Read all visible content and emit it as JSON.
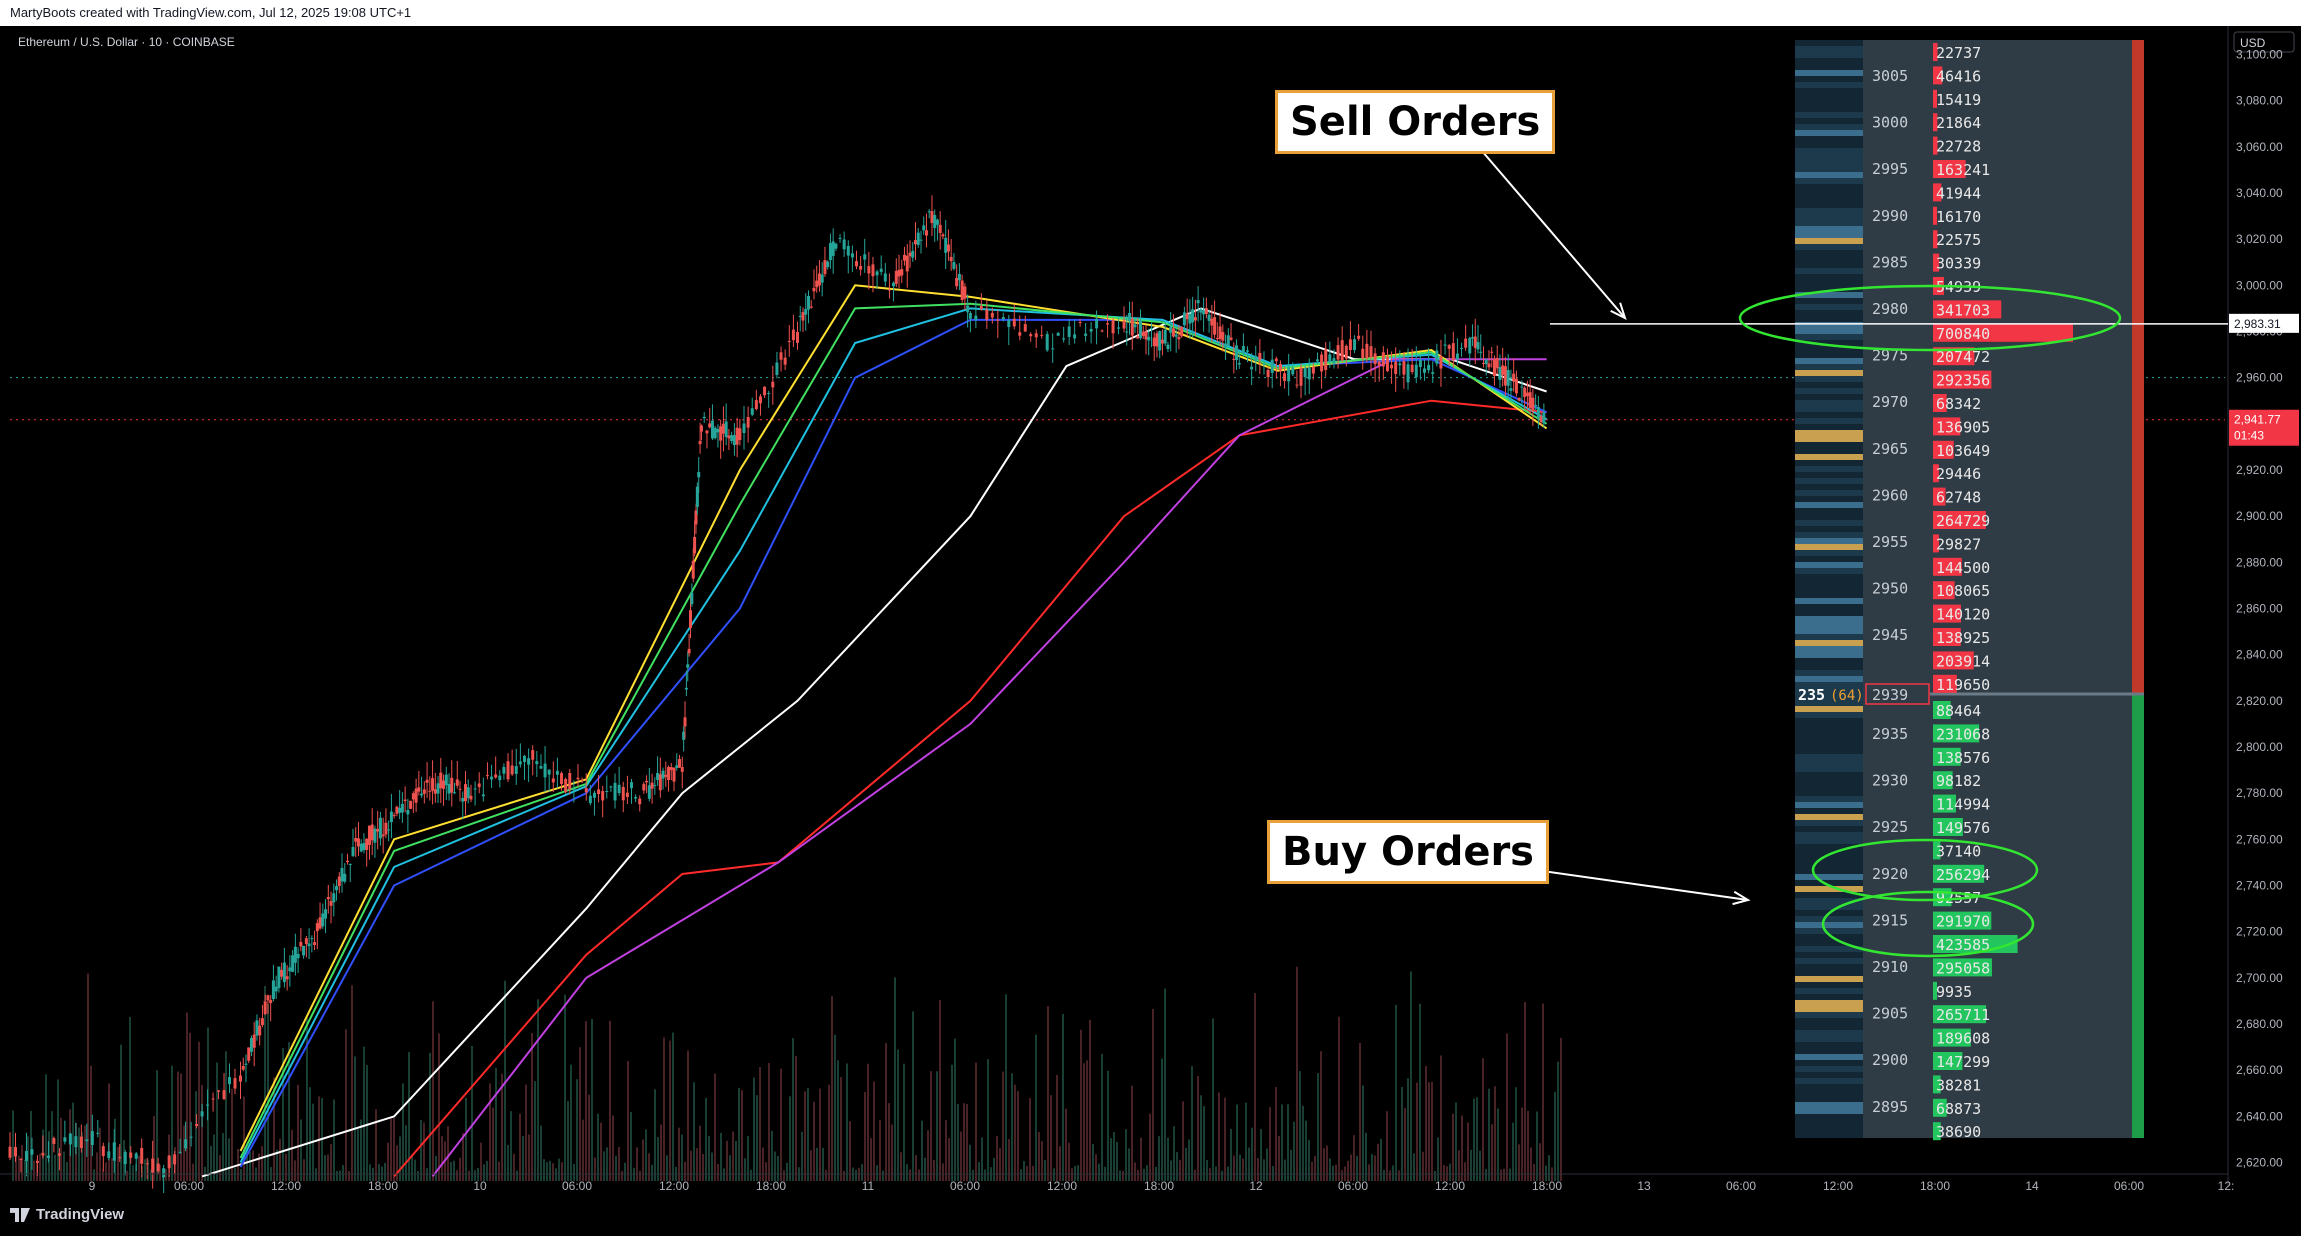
{
  "header": {
    "credit": "MartyBoots created with TradingView.com, Jul 12, 2025 19:08 UTC+1"
  },
  "footer": {
    "brand": "TradingView"
  },
  "annotations": {
    "sell_label": "Sell Orders",
    "buy_label": "Buy Orders"
  },
  "colors": {
    "background": "#000000",
    "ask": "#f23645",
    "bid": "#22c55e",
    "ladder_bg": "#2f3c45",
    "callout_border": "#e8a13a",
    "circle": "#32e632"
  },
  "chart_data": {
    "type": "line",
    "title": "Ethereum / U.S. Dollar · 10 · COINBASE",
    "currency": "USD",
    "ylim": [
      2612,
      3108
    ],
    "y_ticks": [
      "3,100.00",
      "3,080.00",
      "3,060.00",
      "3,040.00",
      "3,020.00",
      "3,000.00",
      "2,980.00",
      "2,960.00",
      "2,940.00",
      "2,920.00",
      "2,900.00",
      "2,880.00",
      "2,860.00",
      "2,840.00",
      "2,820.00",
      "2,800.00",
      "2,780.00",
      "2,760.00",
      "2,740.00",
      "2,720.00",
      "2,700.00",
      "2,680.00",
      "2,660.00",
      "2,640.00",
      "2,620.00"
    ],
    "x_ticks": [
      "9",
      "06:00",
      "12:00",
      "18:00",
      "10",
      "06:00",
      "12:00",
      "18:00",
      "11",
      "06:00",
      "12:00",
      "18:00",
      "12",
      "06:00",
      "12:00",
      "18:00",
      "13",
      "06:00",
      "12:00",
      "18:00",
      "14",
      "06:00",
      "12:"
    ],
    "price_labels": {
      "horizontal_line": "2,983.31",
      "last_price": "2,941.77",
      "countdown": "01:43"
    },
    "price_path": [
      {
        "x": 0.0,
        "y": 2622
      },
      {
        "x": 0.02,
        "y": 2630
      },
      {
        "x": 0.04,
        "y": 2618
      },
      {
        "x": 0.06,
        "y": 2660
      },
      {
        "x": 0.07,
        "y": 2700
      },
      {
        "x": 0.08,
        "y": 2720
      },
      {
        "x": 0.09,
        "y": 2756
      },
      {
        "x": 0.1,
        "y": 2770
      },
      {
        "x": 0.11,
        "y": 2785
      },
      {
        "x": 0.12,
        "y": 2780
      },
      {
        "x": 0.135,
        "y": 2795
      },
      {
        "x": 0.15,
        "y": 2780
      },
      {
        "x": 0.165,
        "y": 2780
      },
      {
        "x": 0.175,
        "y": 2792
      },
      {
        "x": 0.18,
        "y": 2940
      },
      {
        "x": 0.19,
        "y": 2935
      },
      {
        "x": 0.205,
        "y": 2980
      },
      {
        "x": 0.215,
        "y": 3020
      },
      {
        "x": 0.23,
        "y": 3000
      },
      {
        "x": 0.24,
        "y": 3030
      },
      {
        "x": 0.25,
        "y": 2990
      },
      {
        "x": 0.27,
        "y": 2975
      },
      {
        "x": 0.29,
        "y": 2985
      },
      {
        "x": 0.3,
        "y": 2975
      },
      {
        "x": 0.31,
        "y": 2990
      },
      {
        "x": 0.32,
        "y": 2970
      },
      {
        "x": 0.335,
        "y": 2960
      },
      {
        "x": 0.35,
        "y": 2975
      },
      {
        "x": 0.365,
        "y": 2962
      },
      {
        "x": 0.38,
        "y": 2975
      },
      {
        "x": 0.39,
        "y": 2960
      },
      {
        "x": 0.4,
        "y": 2942
      }
    ],
    "series": [
      {
        "name": "",
        "color": "#ffffff",
        "values": [
          {
            "x": 0.05,
            "y": 2614
          },
          {
            "x": 0.1,
            "y": 2640
          },
          {
            "x": 0.15,
            "y": 2730
          },
          {
            "x": 0.175,
            "y": 2780
          },
          {
            "x": 0.205,
            "y": 2820
          },
          {
            "x": 0.25,
            "y": 2900
          },
          {
            "x": 0.275,
            "y": 2965
          },
          {
            "x": 0.31,
            "y": 2990
          },
          {
            "x": 0.35,
            "y": 2968
          },
          {
            "x": 0.375,
            "y": 2968
          },
          {
            "x": 0.4,
            "y": 2954
          }
        ]
      },
      {
        "name": "",
        "color": "#ff2a2a",
        "values": [
          {
            "x": 0.1,
            "y": 2614
          },
          {
            "x": 0.15,
            "y": 2710
          },
          {
            "x": 0.175,
            "y": 2745
          },
          {
            "x": 0.2,
            "y": 2750
          },
          {
            "x": 0.25,
            "y": 2820
          },
          {
            "x": 0.29,
            "y": 2900
          },
          {
            "x": 0.32,
            "y": 2935
          },
          {
            "x": 0.37,
            "y": 2950
          },
          {
            "x": 0.4,
            "y": 2945
          }
        ]
      },
      {
        "name": "",
        "color": "#c040e0",
        "values": [
          {
            "x": 0.11,
            "y": 2614
          },
          {
            "x": 0.15,
            "y": 2700
          },
          {
            "x": 0.2,
            "y": 2750
          },
          {
            "x": 0.25,
            "y": 2810
          },
          {
            "x": 0.29,
            "y": 2880
          },
          {
            "x": 0.32,
            "y": 2935
          },
          {
            "x": 0.36,
            "y": 2968
          },
          {
            "x": 0.4,
            "y": 2968
          }
        ]
      },
      {
        "name": "",
        "color": "#3050ff",
        "values": [
          {
            "x": 0.06,
            "y": 2618
          },
          {
            "x": 0.1,
            "y": 2740
          },
          {
            "x": 0.15,
            "y": 2780
          },
          {
            "x": 0.19,
            "y": 2860
          },
          {
            "x": 0.22,
            "y": 2960
          },
          {
            "x": 0.25,
            "y": 2985
          },
          {
            "x": 0.3,
            "y": 2985
          },
          {
            "x": 0.33,
            "y": 2965
          },
          {
            "x": 0.37,
            "y": 2968
          },
          {
            "x": 0.4,
            "y": 2945
          }
        ]
      },
      {
        "name": "",
        "color": "#20c0e0",
        "values": [
          {
            "x": 0.06,
            "y": 2620
          },
          {
            "x": 0.1,
            "y": 2748
          },
          {
            "x": 0.15,
            "y": 2783
          },
          {
            "x": 0.19,
            "y": 2885
          },
          {
            "x": 0.22,
            "y": 2975
          },
          {
            "x": 0.25,
            "y": 2990
          },
          {
            "x": 0.3,
            "y": 2985
          },
          {
            "x": 0.33,
            "y": 2965
          },
          {
            "x": 0.37,
            "y": 2970
          },
          {
            "x": 0.4,
            "y": 2942
          }
        ]
      },
      {
        "name": "",
        "color": "#ffe030",
        "values": [
          {
            "x": 0.06,
            "y": 2625
          },
          {
            "x": 0.1,
            "y": 2760
          },
          {
            "x": 0.15,
            "y": 2786
          },
          {
            "x": 0.19,
            "y": 2920
          },
          {
            "x": 0.22,
            "y": 3000
          },
          {
            "x": 0.25,
            "y": 2995
          },
          {
            "x": 0.3,
            "y": 2982
          },
          {
            "x": 0.33,
            "y": 2963
          },
          {
            "x": 0.37,
            "y": 2972
          },
          {
            "x": 0.4,
            "y": 2938
          }
        ]
      },
      {
        "name": "",
        "color": "#40e060",
        "values": [
          {
            "x": 0.06,
            "y": 2622
          },
          {
            "x": 0.1,
            "y": 2755
          },
          {
            "x": 0.15,
            "y": 2784
          },
          {
            "x": 0.19,
            "y": 2905
          },
          {
            "x": 0.22,
            "y": 2990
          },
          {
            "x": 0.25,
            "y": 2992
          },
          {
            "x": 0.3,
            "y": 2984
          },
          {
            "x": 0.33,
            "y": 2964
          },
          {
            "x": 0.37,
            "y": 2971
          },
          {
            "x": 0.4,
            "y": 2940
          }
        ]
      }
    ],
    "order_book": {
      "current_price": "2939",
      "current_volume": "235",
      "current_delta": "(64)",
      "asks": [
        {
          "price": "3005",
          "size": 46416
        },
        {
          "price": "3000",
          "size": 21864
        },
        {
          "price": "2995",
          "size": 163241
        },
        {
          "price": "2990",
          "size": 16170
        },
        {
          "price": "2985",
          "size": 30339
        },
        {
          "price": "2980",
          "size": 341703
        },
        {
          "price": "2975",
          "size": 207472
        },
        {
          "price": "2970",
          "size": 68342
        },
        {
          "price": "2965",
          "size": 103649
        },
        {
          "price": "2960",
          "size": 62748
        },
        {
          "price": "2955",
          "size": 29827
        },
        {
          "price": "2950",
          "size": 108065
        },
        {
          "price": "2945",
          "size": 138925
        }
      ],
      "ask_levels": [
        22737,
        46416,
        15419,
        21864,
        22728,
        163241,
        41944,
        16170,
        22575,
        30339,
        54939,
        341703,
        700840,
        207472,
        292356,
        68342,
        136905,
        103649,
        29446,
        62748,
        264729,
        29827,
        144500,
        108065,
        140120,
        138925,
        203914,
        119650
      ],
      "bid_levels": [
        88464,
        231068,
        138576,
        98182,
        114994,
        149576,
        37140,
        256294,
        92557,
        291970,
        423585,
        295058,
        9935,
        265711,
        189608,
        147299,
        38281,
        68873,
        38690
      ],
      "bid_prices": [
        "2935",
        "2930",
        "2925",
        "2920",
        "2915",
        "2910",
        "2905",
        "2900",
        "2895"
      ]
    }
  }
}
